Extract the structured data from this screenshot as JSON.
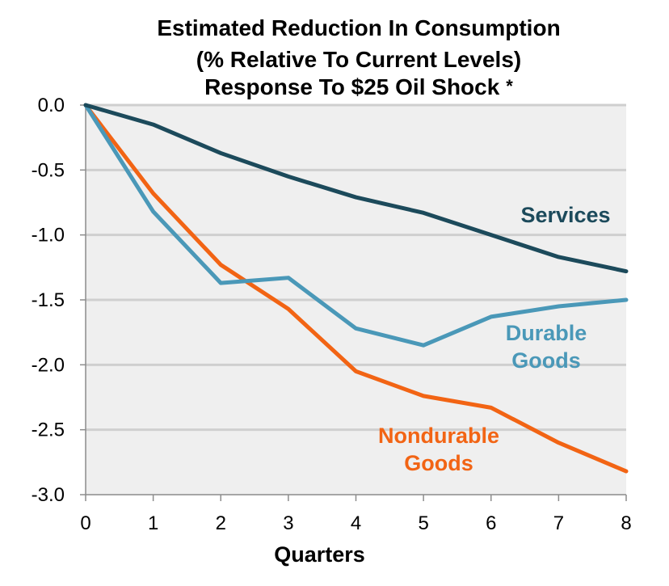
{
  "chart_data": {
    "type": "line",
    "title": [
      "Estimated Reduction In Consumption",
      "(% Relative To Current Levels)",
      "Response To $25 Oil Shock"
    ],
    "title_note": "*",
    "xlabel": "Quarters",
    "ylabel": "",
    "x": [
      0,
      1,
      2,
      3,
      4,
      5,
      6,
      7,
      8
    ],
    "xlim": [
      0,
      8
    ],
    "ylim": [
      -3.0,
      0.0
    ],
    "x_ticks": [
      "0",
      "1",
      "2",
      "3",
      "4",
      "5",
      "6",
      "7",
      "8"
    ],
    "y_ticks": [
      {
        "value": 0.0,
        "label": "0.0"
      },
      {
        "value": -0.5,
        "label": "-0.5"
      },
      {
        "value": -1.0,
        "label": "-1.0"
      },
      {
        "value": -1.5,
        "label": "-1.5"
      },
      {
        "value": -2.0,
        "label": "-2.0"
      },
      {
        "value": -2.5,
        "label": "-2.5"
      },
      {
        "value": -3.0,
        "label": "-3.0"
      }
    ],
    "grid": true,
    "legend": "inline labels",
    "plot_background": "#efefef",
    "series": [
      {
        "name": "Services",
        "label_lines": [
          "Services"
        ],
        "color": "#1c4a5b",
        "values": [
          0.0,
          -0.15,
          -0.37,
          -0.55,
          -0.71,
          -0.83,
          -1.0,
          -1.17,
          -1.28
        ]
      },
      {
        "name": "Durable Goods",
        "label_lines": [
          "Durable",
          "Goods"
        ],
        "color": "#4a98b8",
        "values": [
          0.0,
          -0.82,
          -1.37,
          -1.33,
          -1.72,
          -1.85,
          -1.63,
          -1.55,
          -1.5
        ]
      },
      {
        "name": "Nondurable Goods",
        "label_lines": [
          "Nondurable",
          "Goods"
        ],
        "color": "#f26414",
        "values": [
          0.0,
          -0.68,
          -1.23,
          -1.57,
          -2.05,
          -2.24,
          -2.33,
          -2.6,
          -2.82
        ]
      }
    ]
  }
}
